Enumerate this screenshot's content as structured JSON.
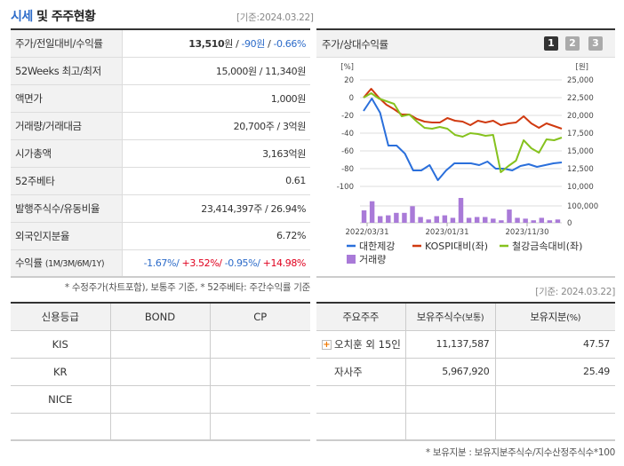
{
  "header": {
    "title_accent": "시세",
    "title_rest": " 및 주주현황",
    "date_note": "[기준:2024.03.22]"
  },
  "price_info": {
    "rows": [
      {
        "label": "주가/전일대비/수익률",
        "price": "13,510",
        "unit": "원",
        "change": "-90원",
        "change_pct": "-0.66%"
      },
      {
        "label": "52Weeks 최고/최저",
        "value": "15,000원 / 11,340원"
      },
      {
        "label": "액면가",
        "value": "1,000원"
      },
      {
        "label": "거래량/거래대금",
        "value": "20,700주 / 3억원"
      },
      {
        "label": "시가총액",
        "value": "3,163억원"
      },
      {
        "label": "52주베타",
        "value": "0.61"
      },
      {
        "label": "발행주식수/유동비율",
        "value": "23,414,397주 / 26.94%"
      },
      {
        "label": "외국인지분율",
        "value": "6.72%"
      },
      {
        "label": "수익률",
        "label_sub": "(1M/3M/6M/1Y)",
        "r1m": "-1.67%/",
        "r3m": "+3.52%/",
        "r6m": "-0.95%/",
        "r1y": "+14.98%"
      }
    ],
    "footnote": "* 수정주가(차트포함), 보통주 기준, * 52주베타: 주간수익률 기준"
  },
  "chart_panel": {
    "title": "주가/상대수익률",
    "pages": [
      "1",
      "2",
      "3"
    ],
    "active_page": "1"
  },
  "chart_data": {
    "type": "line",
    "title": "주가/상대수익률",
    "left_axis_label": "[%]",
    "right_axis_label": "[원]",
    "left_ticks": [
      "20",
      "0",
      "-20",
      "-40",
      "-60",
      "-80",
      "-100"
    ],
    "right_ticks": [
      "25,000",
      "22,500",
      "20,000",
      "17,500",
      "15,000",
      "12,500",
      "10,000"
    ],
    "volume_ticks": [
      "100,000",
      "0"
    ],
    "x_tick_labels": [
      "2022/03/31",
      "2023/01/31",
      "2023/11/30"
    ],
    "ylim_left": [
      -100,
      20
    ],
    "ylim_right": [
      10000,
      25000
    ],
    "series": [
      {
        "name": "대한제강",
        "color": "#2a6fdb",
        "values": [
          -15,
          -1,
          -17,
          -54,
          -54,
          -63,
          -82,
          -82,
          -76,
          -93,
          -82,
          -74,
          -74,
          -74,
          -76,
          -72,
          -80,
          -80,
          -82,
          -77,
          -75,
          -78,
          -76,
          -74,
          -73
        ]
      },
      {
        "name": "KOSPI대비(좌)",
        "color": "#d03a10",
        "values": [
          0,
          10,
          0,
          -8,
          -13,
          -19,
          -19,
          -24,
          -27,
          -28,
          -28,
          -23,
          -26,
          -27,
          -31,
          -26,
          -28,
          -26,
          -31,
          -29,
          -28,
          -21,
          -29,
          -34,
          -29,
          -32,
          -35
        ]
      },
      {
        "name": "철강금속대비(좌)",
        "color": "#86c21e",
        "values": [
          0,
          5,
          -1,
          -4,
          -7,
          -21,
          -19,
          -27,
          -34,
          -35,
          -33,
          -35,
          -42,
          -44,
          -40,
          -41,
          -43,
          -42,
          -84,
          -77,
          -71,
          -48,
          -57,
          -62,
          -47,
          -48,
          -45
        ]
      }
    ],
    "volume": {
      "name": "거래량",
      "color": "#a97ad8",
      "values": [
        30,
        52,
        16,
        18,
        24,
        24,
        40,
        14,
        8,
        16,
        18,
        12,
        60,
        12,
        14,
        14,
        10,
        6,
        32,
        12,
        10,
        6,
        12,
        6,
        8
      ]
    },
    "legend": [
      "대한제강",
      "KOSPI대비(좌)",
      "철강금속대비(좌)",
      "거래량"
    ]
  },
  "credit": {
    "headers": [
      "신용등급",
      "BOND",
      "CP"
    ],
    "rows": [
      [
        "KIS",
        "",
        ""
      ],
      [
        "KR",
        "",
        ""
      ],
      [
        "NICE",
        "",
        ""
      ],
      [
        "",
        "",
        ""
      ]
    ]
  },
  "holders": {
    "date_note": "[기준: 2024.03.22]",
    "headers": [
      "주요주주",
      "보유주식수",
      "(보통)",
      "보유지분",
      "(%)"
    ],
    "rows": [
      {
        "name": "오치훈 외 15인",
        "expandable": true,
        "shares": "11,137,587",
        "pct": "47.57"
      },
      {
        "name": "자사주",
        "expandable": false,
        "shares": "5,967,920",
        "pct": "25.49"
      },
      {
        "name": "",
        "shares": "",
        "pct": ""
      },
      {
        "name": "",
        "shares": "",
        "pct": ""
      }
    ],
    "footnote": "* 보유지분 : 보유지분주식수/지수산정주식수*100"
  }
}
